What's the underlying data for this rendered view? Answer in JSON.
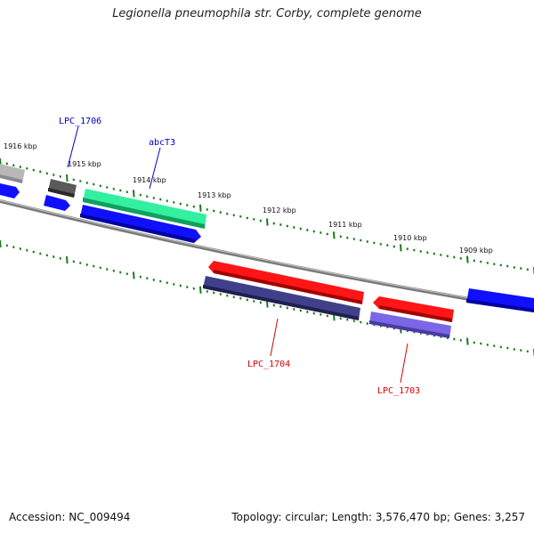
{
  "title": "Legionella pneumophila str. Corby, complete genome",
  "footer": {
    "accession": "Accession: NC_009494",
    "summary": "Topology: circular; Length: 3,576,470 bp; Genes: 3,257"
  },
  "colors": {
    "backbone": "#808080",
    "tick": "#1a7a1a",
    "forward_label": "#0000cc",
    "reverse_label": "#dd0000",
    "blue_gene": "#0000ff",
    "red_gene": "#ff0000",
    "teal_gene": "#22ee99",
    "navy_gene": "#3a3a80",
    "violet_gene": "#7060e0",
    "gray_gene": "#555555",
    "lightgray_gene": "#bbbbbb"
  },
  "ticks": [
    {
      "label": "1916 kbp"
    },
    {
      "label": "1915 kbp"
    },
    {
      "label": "1914 kbp"
    },
    {
      "label": "1913 kbp"
    },
    {
      "label": "1912 kbp"
    },
    {
      "label": "1911 kbp"
    },
    {
      "label": "1910 kbp"
    },
    {
      "label": "1909 kbp"
    }
  ],
  "gene_labels": [
    {
      "name": "LPC_1706",
      "strand": "forward"
    },
    {
      "name": "abcT3",
      "strand": "forward"
    },
    {
      "name": "LPC_1704",
      "strand": "reverse"
    },
    {
      "name": "LPC_1703",
      "strand": "reverse"
    }
  ]
}
